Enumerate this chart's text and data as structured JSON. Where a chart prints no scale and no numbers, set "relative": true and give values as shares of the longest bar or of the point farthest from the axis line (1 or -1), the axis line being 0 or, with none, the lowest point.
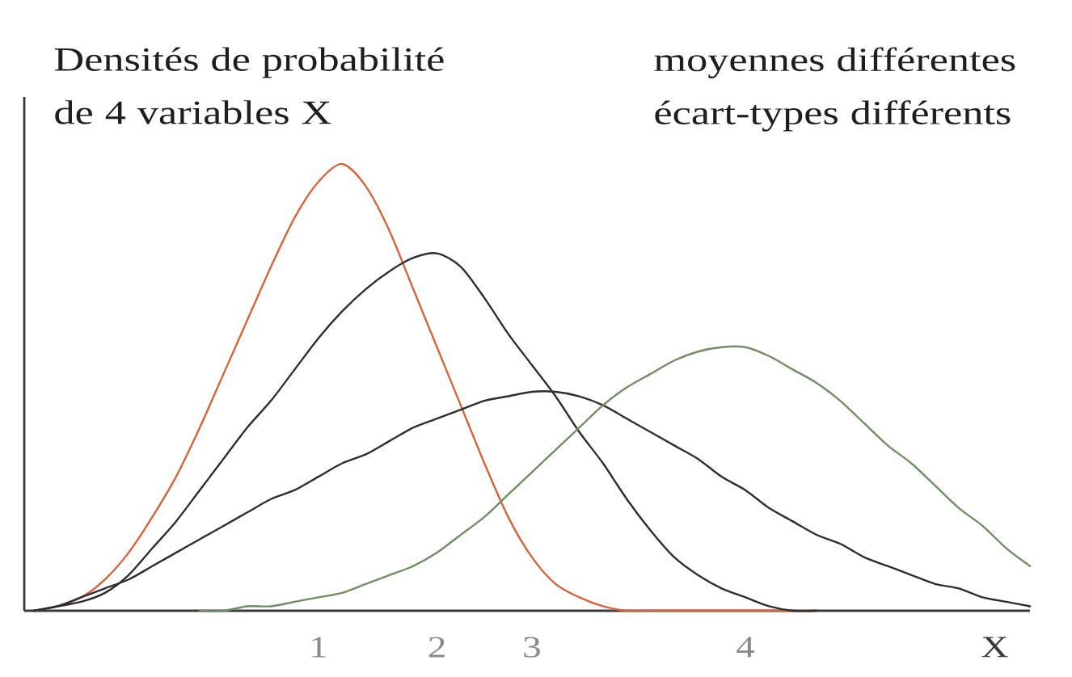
{
  "chart_data": {
    "type": "line",
    "title": "Densités de probabilité de 4 variables X",
    "subtitle": "moyennes différentes écart-types différents",
    "xlabel": "X",
    "relative": true,
    "categories": [
      null,
      null,
      null,
      null,
      null,
      null,
      null,
      null,
      null,
      null,
      null,
      null,
      "1",
      null,
      null,
      null,
      null,
      "2",
      null,
      null,
      null,
      "3",
      null,
      null,
      null,
      null,
      null,
      null,
      null,
      null,
      "4",
      null,
      null,
      null,
      null,
      null,
      null,
      null,
      null,
      null,
      null,
      null,
      null
    ],
    "series": [
      {
        "color": "#d9643a",
        "values": [
          0.0,
          0.01,
          0.03,
          0.07,
          0.13,
          0.21,
          0.3,
          0.41,
          0.53,
          0.65,
          0.77,
          0.88,
          0.96,
          1.0,
          0.95,
          0.85,
          0.72,
          0.59,
          0.46,
          0.33,
          0.21,
          0.12,
          0.06,
          0.03,
          0.01,
          0.0,
          0.0,
          0.0,
          0.0,
          0.0,
          0.0,
          0.0,
          0.0,
          0.0,
          null,
          null,
          null,
          null,
          null,
          null,
          null,
          null,
          null
        ]
      },
      {
        "color": "#2e2e2e",
        "values": [
          0.0,
          0.01,
          0.02,
          0.04,
          0.08,
          0.14,
          0.2,
          0.27,
          0.34,
          0.41,
          0.47,
          0.54,
          0.61,
          0.67,
          0.72,
          0.76,
          0.79,
          0.8,
          0.77,
          0.7,
          0.62,
          0.55,
          0.48,
          0.4,
          0.33,
          0.25,
          0.18,
          0.12,
          0.08,
          0.05,
          0.03,
          0.01,
          0.0,
          0.0,
          null,
          null,
          null,
          null,
          null,
          null,
          null,
          null,
          null
        ]
      },
      {
        "color": "#2e2e2e",
        "values": [
          0.0,
          0.01,
          0.03,
          0.05,
          0.07,
          0.1,
          0.13,
          0.16,
          0.19,
          0.22,
          0.25,
          0.27,
          0.3,
          0.33,
          0.35,
          0.38,
          0.41,
          0.43,
          0.45,
          0.47,
          0.48,
          0.49,
          0.49,
          0.48,
          0.46,
          0.43,
          0.4,
          0.37,
          0.34,
          0.3,
          0.27,
          0.23,
          0.2,
          0.17,
          0.15,
          0.12,
          0.1,
          0.08,
          0.06,
          0.05,
          0.03,
          0.02,
          0.01
        ]
      },
      {
        "color": "#6f8f63",
        "values": [
          null,
          null,
          null,
          null,
          null,
          null,
          null,
          0.0,
          0.0,
          0.01,
          0.01,
          0.02,
          0.03,
          0.04,
          0.06,
          0.08,
          0.1,
          0.13,
          0.17,
          0.21,
          0.26,
          0.31,
          0.36,
          0.41,
          0.46,
          0.5,
          0.53,
          0.56,
          0.58,
          0.59,
          0.59,
          0.57,
          0.54,
          0.51,
          0.47,
          0.42,
          0.37,
          0.33,
          0.28,
          0.23,
          0.19,
          0.14,
          0.1
        ]
      }
    ]
  }
}
